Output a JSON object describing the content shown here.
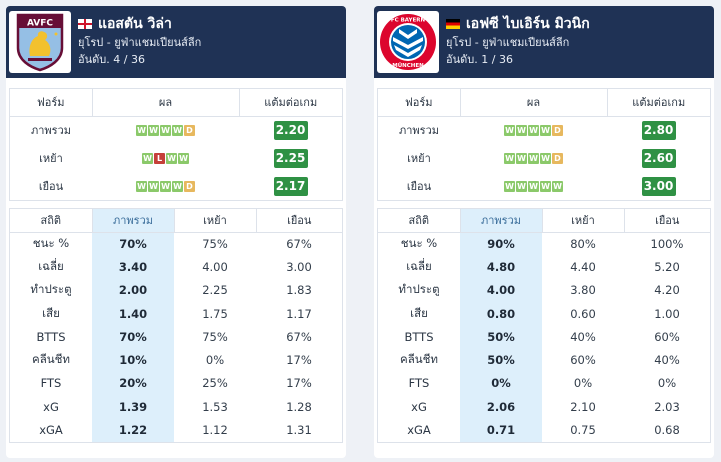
{
  "teams": [
    {
      "name": "แอสตัน วิล่า",
      "flag": "england",
      "logo_label": "AVFC",
      "competition": "ยุโรป - ยูฟ่าแชมเปียนส์ลีก",
      "rank": "อันดับ. 4 / 36",
      "form": {
        "headers": [
          "ฟอร์ม",
          "ผล",
          "แต้มต่อเกม"
        ],
        "rows": [
          {
            "label": "ภาพรวม",
            "results": [
              "W",
              "W",
              "W",
              "W",
              "D"
            ],
            "ppg": "2.20"
          },
          {
            "label": "เหย้า",
            "results": [
              "W",
              "L",
              "W",
              "W"
            ],
            "ppg": "2.25"
          },
          {
            "label": "เยือน",
            "results": [
              "W",
              "W",
              "W",
              "W",
              "D"
            ],
            "ppg": "2.17"
          }
        ]
      },
      "stats": {
        "headers": [
          "สถิติ",
          "ภาพรวม",
          "เหย้า",
          "เยือน"
        ],
        "rows": [
          {
            "label": "ชนะ %",
            "overall": "70%",
            "home": "75%",
            "away": "67%"
          },
          {
            "label": "เฉลี่ย",
            "overall": "3.40",
            "home": "4.00",
            "away": "3.00"
          },
          {
            "label": "ทำประตู",
            "overall": "2.00",
            "home": "2.25",
            "away": "1.83"
          },
          {
            "label": "เสีย",
            "overall": "1.40",
            "home": "1.75",
            "away": "1.17"
          },
          {
            "label": "BTTS",
            "overall": "70%",
            "home": "75%",
            "away": "67%"
          },
          {
            "label": "คลีนชีท",
            "overall": "10%",
            "home": "0%",
            "away": "17%"
          },
          {
            "label": "FTS",
            "overall": "20%",
            "home": "25%",
            "away": "17%"
          },
          {
            "label": "xG",
            "overall": "1.39",
            "home": "1.53",
            "away": "1.28"
          },
          {
            "label": "xGA",
            "overall": "1.22",
            "home": "1.12",
            "away": "1.31"
          }
        ]
      }
    },
    {
      "name": "เอฟซี ไบเอิร์น มิวนิก",
      "flag": "germany",
      "logo_label": "FC BAYERN MÜNCHEN",
      "competition": "ยุโรป - ยูฟ่าแชมเปียนส์ลีก",
      "rank": "อันดับ. 1 / 36",
      "form": {
        "headers": [
          "ฟอร์ม",
          "ผล",
          "แต้มต่อเกม"
        ],
        "rows": [
          {
            "label": "ภาพรวม",
            "results": [
              "W",
              "W",
              "W",
              "W",
              "D"
            ],
            "ppg": "2.80"
          },
          {
            "label": "เหย้า",
            "results": [
              "W",
              "W",
              "W",
              "W",
              "D"
            ],
            "ppg": "2.60"
          },
          {
            "label": "เยือน",
            "results": [
              "W",
              "W",
              "W",
              "W",
              "W"
            ],
            "ppg": "3.00"
          }
        ]
      },
      "stats": {
        "headers": [
          "สถิติ",
          "ภาพรวม",
          "เหย้า",
          "เยือน"
        ],
        "rows": [
          {
            "label": "ชนะ %",
            "overall": "90%",
            "home": "80%",
            "away": "100%"
          },
          {
            "label": "เฉลี่ย",
            "overall": "4.80",
            "home": "4.40",
            "away": "5.20"
          },
          {
            "label": "ทำประตู",
            "overall": "4.00",
            "home": "3.80",
            "away": "4.20"
          },
          {
            "label": "เสีย",
            "overall": "0.80",
            "home": "0.60",
            "away": "1.00"
          },
          {
            "label": "BTTS",
            "overall": "50%",
            "home": "40%",
            "away": "60%"
          },
          {
            "label": "คลีนชีท",
            "overall": "50%",
            "home": "60%",
            "away": "40%"
          },
          {
            "label": "FTS",
            "overall": "0%",
            "home": "0%",
            "away": "0%"
          },
          {
            "label": "xG",
            "overall": "2.06",
            "home": "2.10",
            "away": "2.03"
          },
          {
            "label": "xGA",
            "overall": "0.71",
            "home": "0.75",
            "away": "0.68"
          }
        ]
      }
    }
  ],
  "colors": {
    "header_bg": "#1f3255",
    "win": "#8bc96a",
    "draw": "#e7b85e",
    "loss": "#c5403a",
    "ppg_green": "#2f9144",
    "highlight_col": "#ddeffb"
  }
}
